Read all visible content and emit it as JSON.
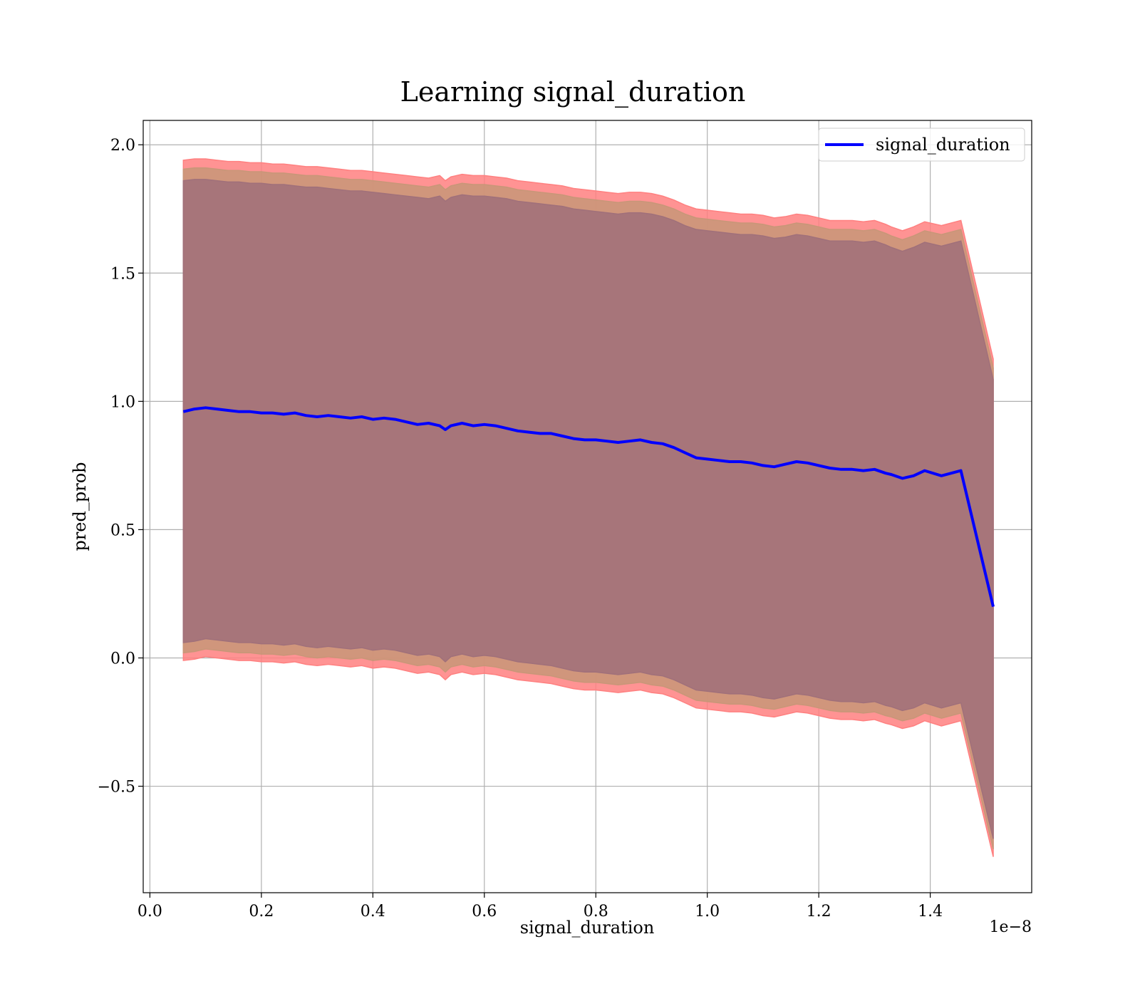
{
  "chart_data": {
    "type": "line",
    "title": "Learning signal_duration",
    "xlabel": "signal_duration",
    "ylabel": "pred_prob",
    "x_offset_label": "1e−8",
    "xlim": [
      -0.012,
      1.582
    ],
    "ylim": [
      -0.915,
      2.095
    ],
    "x_ticks": [
      0.0,
      0.2,
      0.4,
      0.6,
      0.8,
      1.0,
      1.2,
      1.4
    ],
    "x_tick_labels": [
      "0.0",
      "0.2",
      "0.4",
      "0.6",
      "0.8",
      "1.0",
      "1.2",
      "1.4"
    ],
    "y_ticks": [
      -0.5,
      0.0,
      0.5,
      1.0,
      1.5,
      2.0
    ],
    "y_tick_labels": [
      "−0.5",
      "0.0",
      "0.5",
      "1.0",
      "1.5",
      "2.0"
    ],
    "grid": true,
    "legend_position": "top-right",
    "colors": {
      "line": "#0000ff",
      "band_outer": "#ff8080",
      "band_middle": "#c89678",
      "band_inner": "#a0707a",
      "grid": "#b0b0b0"
    },
    "series": [
      {
        "name": "signal_duration",
        "x": [
          0.06,
          0.08,
          0.1,
          0.12,
          0.14,
          0.16,
          0.18,
          0.2,
          0.22,
          0.24,
          0.26,
          0.28,
          0.3,
          0.32,
          0.34,
          0.36,
          0.38,
          0.4,
          0.42,
          0.44,
          0.46,
          0.48,
          0.5,
          0.52,
          0.53,
          0.54,
          0.56,
          0.58,
          0.6,
          0.62,
          0.64,
          0.66,
          0.68,
          0.7,
          0.72,
          0.74,
          0.76,
          0.78,
          0.8,
          0.82,
          0.84,
          0.86,
          0.88,
          0.9,
          0.92,
          0.94,
          0.96,
          0.98,
          1.0,
          1.02,
          1.04,
          1.06,
          1.08,
          1.1,
          1.12,
          1.14,
          1.16,
          1.18,
          1.2,
          1.22,
          1.24,
          1.26,
          1.28,
          1.3,
          1.32,
          1.33,
          1.35,
          1.37,
          1.39,
          1.42,
          1.455,
          1.513
        ],
        "y": [
          0.96,
          0.97,
          0.975,
          0.97,
          0.965,
          0.96,
          0.96,
          0.955,
          0.955,
          0.95,
          0.955,
          0.945,
          0.94,
          0.945,
          0.94,
          0.935,
          0.94,
          0.93,
          0.935,
          0.93,
          0.92,
          0.91,
          0.915,
          0.905,
          0.89,
          0.905,
          0.915,
          0.905,
          0.91,
          0.905,
          0.895,
          0.885,
          0.88,
          0.875,
          0.875,
          0.865,
          0.855,
          0.85,
          0.85,
          0.845,
          0.84,
          0.845,
          0.85,
          0.84,
          0.835,
          0.82,
          0.8,
          0.78,
          0.775,
          0.77,
          0.765,
          0.765,
          0.76,
          0.75,
          0.745,
          0.755,
          0.765,
          0.76,
          0.75,
          0.74,
          0.735,
          0.735,
          0.73,
          0.735,
          0.72,
          0.715,
          0.7,
          0.71,
          0.73,
          0.71,
          0.73,
          0.2
        ],
        "band_outer_upper": [
          1.94,
          1.945,
          1.945,
          1.94,
          1.935,
          1.935,
          1.93,
          1.93,
          1.925,
          1.925,
          1.92,
          1.915,
          1.915,
          1.91,
          1.905,
          1.9,
          1.9,
          1.895,
          1.89,
          1.885,
          1.88,
          1.875,
          1.87,
          1.88,
          1.86,
          1.875,
          1.885,
          1.88,
          1.88,
          1.875,
          1.87,
          1.86,
          1.855,
          1.85,
          1.845,
          1.84,
          1.83,
          1.825,
          1.82,
          1.815,
          1.81,
          1.815,
          1.815,
          1.81,
          1.8,
          1.785,
          1.765,
          1.75,
          1.745,
          1.74,
          1.735,
          1.73,
          1.73,
          1.725,
          1.715,
          1.72,
          1.73,
          1.725,
          1.715,
          1.705,
          1.705,
          1.705,
          1.7,
          1.705,
          1.69,
          1.68,
          1.665,
          1.68,
          1.7,
          1.685,
          1.705,
          1.165
        ],
        "band_outer_lower": [
          -0.01,
          -0.005,
          0.005,
          0.0,
          -0.005,
          -0.01,
          -0.01,
          -0.015,
          -0.015,
          -0.02,
          -0.015,
          -0.025,
          -0.03,
          -0.025,
          -0.03,
          -0.035,
          -0.03,
          -0.04,
          -0.035,
          -0.04,
          -0.05,
          -0.06,
          -0.055,
          -0.065,
          -0.085,
          -0.065,
          -0.055,
          -0.065,
          -0.06,
          -0.065,
          -0.075,
          -0.085,
          -0.09,
          -0.095,
          -0.1,
          -0.11,
          -0.12,
          -0.125,
          -0.125,
          -0.13,
          -0.135,
          -0.13,
          -0.125,
          -0.135,
          -0.14,
          -0.155,
          -0.175,
          -0.195,
          -0.2,
          -0.205,
          -0.21,
          -0.21,
          -0.215,
          -0.225,
          -0.23,
          -0.22,
          -0.21,
          -0.215,
          -0.225,
          -0.235,
          -0.24,
          -0.24,
          -0.245,
          -0.24,
          -0.255,
          -0.26,
          -0.275,
          -0.265,
          -0.245,
          -0.265,
          -0.245,
          -0.775
        ],
        "band_middle_upper": [
          1.905,
          1.91,
          1.91,
          1.905,
          1.9,
          1.9,
          1.895,
          1.895,
          1.89,
          1.89,
          1.885,
          1.88,
          1.88,
          1.875,
          1.87,
          1.865,
          1.865,
          1.86,
          1.855,
          1.85,
          1.845,
          1.84,
          1.835,
          1.845,
          1.825,
          1.84,
          1.85,
          1.845,
          1.845,
          1.84,
          1.835,
          1.825,
          1.82,
          1.815,
          1.81,
          1.805,
          1.795,
          1.79,
          1.785,
          1.78,
          1.775,
          1.78,
          1.78,
          1.775,
          1.765,
          1.75,
          1.73,
          1.715,
          1.71,
          1.705,
          1.7,
          1.695,
          1.695,
          1.69,
          1.68,
          1.685,
          1.695,
          1.69,
          1.68,
          1.67,
          1.67,
          1.67,
          1.665,
          1.67,
          1.655,
          1.645,
          1.63,
          1.645,
          1.665,
          1.65,
          1.67,
          1.13
        ],
        "band_middle_lower": [
          0.02,
          0.025,
          0.035,
          0.03,
          0.025,
          0.02,
          0.02,
          0.015,
          0.015,
          0.01,
          0.015,
          0.005,
          0.0,
          0.005,
          0.0,
          -0.005,
          0.0,
          -0.01,
          -0.005,
          -0.01,
          -0.02,
          -0.03,
          -0.025,
          -0.035,
          -0.055,
          -0.035,
          -0.025,
          -0.035,
          -0.03,
          -0.035,
          -0.045,
          -0.055,
          -0.06,
          -0.065,
          -0.07,
          -0.08,
          -0.09,
          -0.095,
          -0.095,
          -0.1,
          -0.105,
          -0.1,
          -0.095,
          -0.105,
          -0.11,
          -0.125,
          -0.145,
          -0.165,
          -0.17,
          -0.175,
          -0.18,
          -0.18,
          -0.185,
          -0.195,
          -0.2,
          -0.19,
          -0.18,
          -0.185,
          -0.195,
          -0.205,
          -0.21,
          -0.21,
          -0.215,
          -0.21,
          -0.225,
          -0.23,
          -0.245,
          -0.235,
          -0.215,
          -0.235,
          -0.215,
          -0.745
        ],
        "band_inner_upper": [
          1.86,
          1.865,
          1.865,
          1.86,
          1.855,
          1.855,
          1.85,
          1.85,
          1.845,
          1.845,
          1.84,
          1.835,
          1.835,
          1.83,
          1.825,
          1.82,
          1.82,
          1.815,
          1.81,
          1.805,
          1.8,
          1.795,
          1.79,
          1.8,
          1.78,
          1.795,
          1.805,
          1.8,
          1.8,
          1.795,
          1.79,
          1.78,
          1.775,
          1.77,
          1.765,
          1.76,
          1.75,
          1.745,
          1.74,
          1.735,
          1.73,
          1.735,
          1.735,
          1.73,
          1.72,
          1.705,
          1.685,
          1.67,
          1.665,
          1.66,
          1.655,
          1.65,
          1.65,
          1.645,
          1.635,
          1.64,
          1.65,
          1.645,
          1.635,
          1.625,
          1.625,
          1.625,
          1.62,
          1.625,
          1.61,
          1.6,
          1.585,
          1.6,
          1.62,
          1.605,
          1.625,
          1.085
        ],
        "band_inner_lower": [
          0.06,
          0.065,
          0.075,
          0.07,
          0.065,
          0.06,
          0.06,
          0.055,
          0.055,
          0.05,
          0.055,
          0.045,
          0.04,
          0.045,
          0.04,
          0.035,
          0.04,
          0.03,
          0.035,
          0.03,
          0.02,
          0.01,
          0.015,
          0.005,
          -0.015,
          0.005,
          0.015,
          0.005,
          0.01,
          0.005,
          -0.005,
          -0.015,
          -0.02,
          -0.025,
          -0.03,
          -0.04,
          -0.05,
          -0.055,
          -0.055,
          -0.06,
          -0.065,
          -0.06,
          -0.055,
          -0.065,
          -0.07,
          -0.085,
          -0.105,
          -0.125,
          -0.13,
          -0.135,
          -0.14,
          -0.14,
          -0.145,
          -0.155,
          -0.16,
          -0.15,
          -0.14,
          -0.145,
          -0.155,
          -0.165,
          -0.17,
          -0.17,
          -0.175,
          -0.17,
          -0.185,
          -0.19,
          -0.205,
          -0.195,
          -0.175,
          -0.195,
          -0.175,
          -0.705
        ]
      }
    ]
  }
}
